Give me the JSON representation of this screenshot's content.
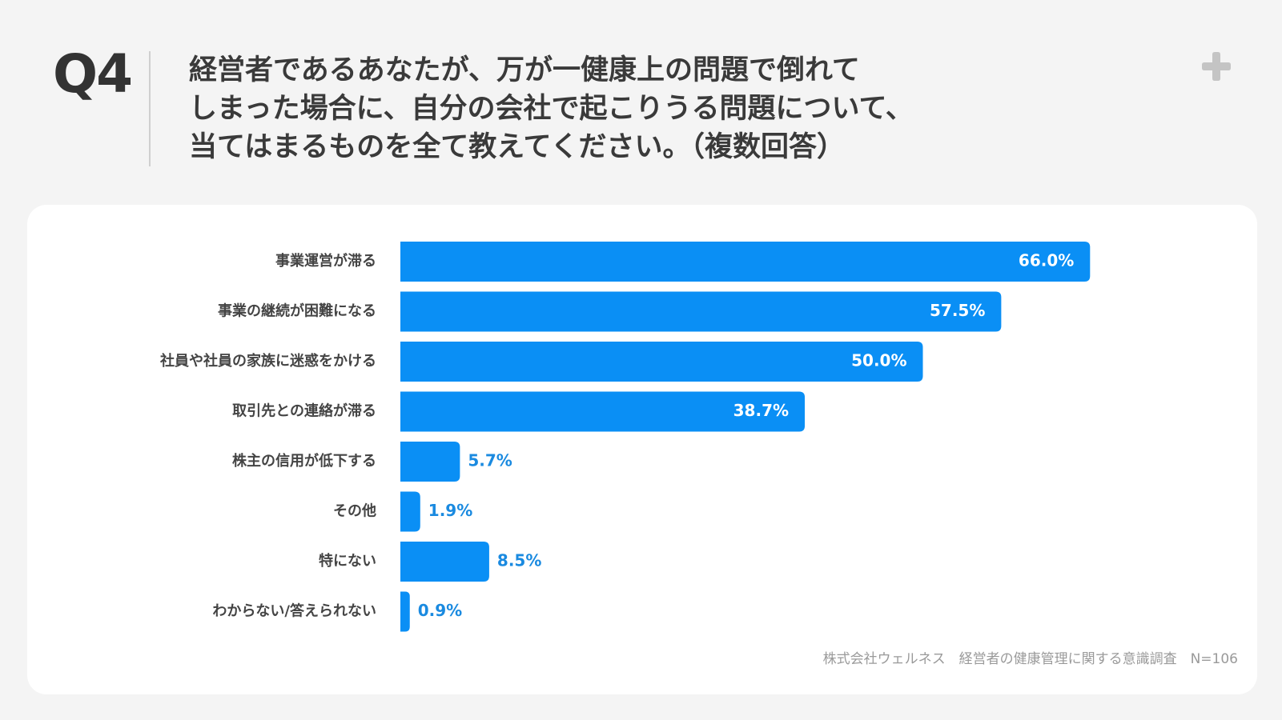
{
  "question": {
    "label": "Q4",
    "text": "経営者であるあなたが、万が一健康上の問題で倒れて\nしまった場合に、自分の会社で起こりうる問題について、\n当てはまるものを全て教えてください。（複数回答）"
  },
  "icons": {
    "plus": "plus-icon"
  },
  "colors": {
    "bar": "#0a8ff5",
    "label_outside": "#1a8ae0",
    "label_inside": "#ffffff",
    "category_text": "#444444",
    "background": "#f4f4f4"
  },
  "chart_data": {
    "type": "bar",
    "orientation": "horizontal",
    "categories": [
      "事業運営が滞る",
      "事業の継続が困難になる",
      "社員や社員の家族に迷惑をかける",
      "取引先との連絡が滞る",
      "株主の信用が低下する",
      "その他",
      "特にない",
      "わからない/答えられない"
    ],
    "values": [
      66.0,
      57.5,
      50.0,
      38.7,
      5.7,
      1.9,
      8.5,
      0.9
    ],
    "value_labels": [
      "66.0%",
      "57.5%",
      "50.0%",
      "38.7%",
      "5.7%",
      "1.9%",
      "8.5%",
      "0.9%"
    ],
    "unit": "%",
    "xlim": [
      0,
      100
    ],
    "grid": false,
    "legend": "none"
  },
  "source": "株式会社ウェルネス　経営者の健康管理に関する意識調査　N=106"
}
